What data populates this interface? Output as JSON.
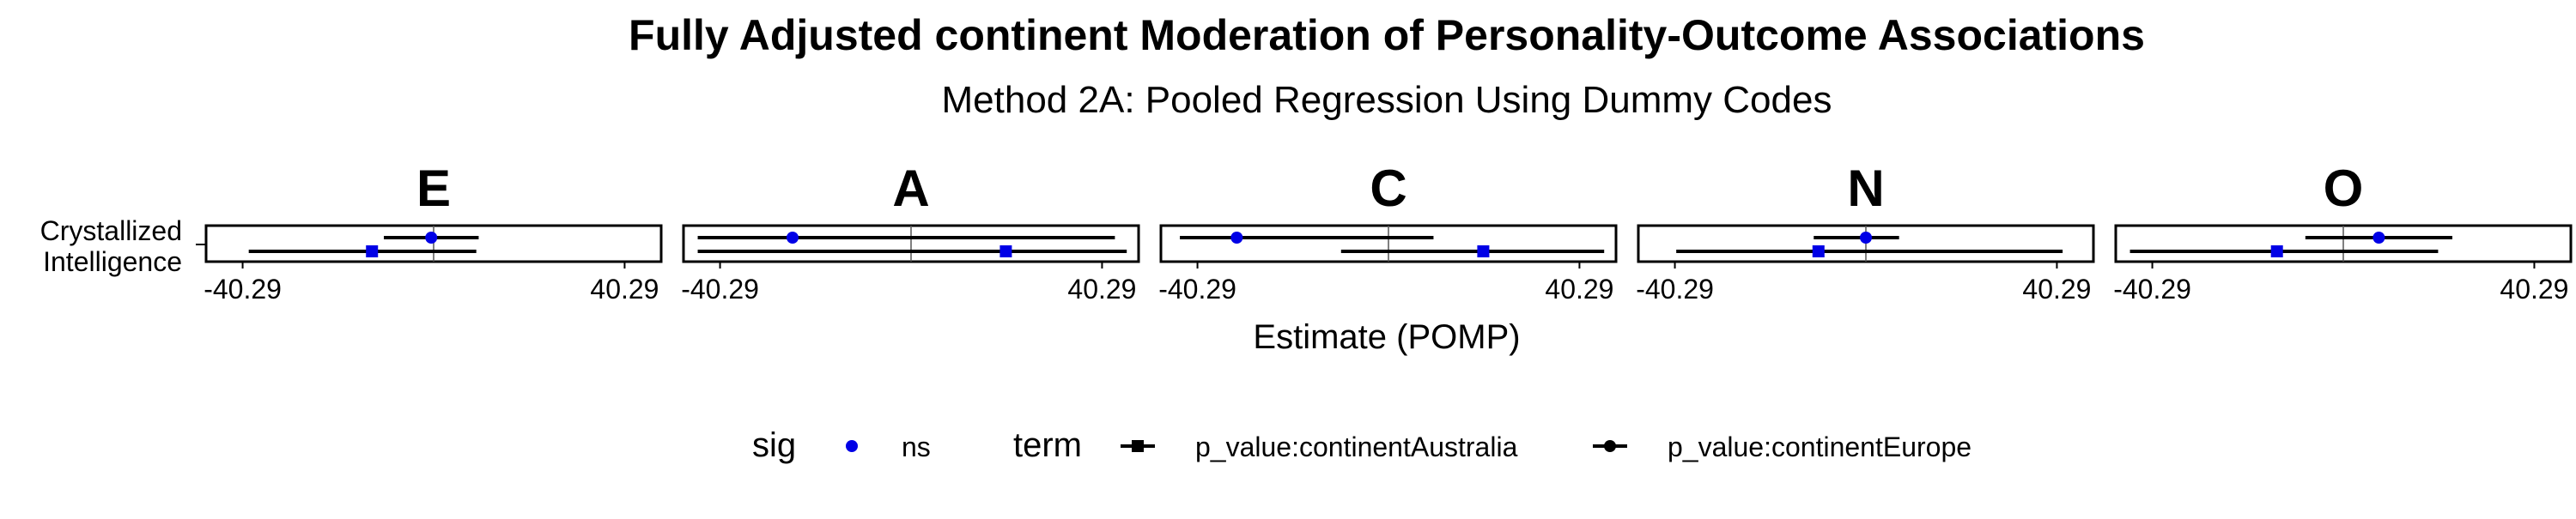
{
  "chart_data": {
    "type": "dot-interval",
    "title": "Fully Adjusted continent Moderation of Personality-Outcome Associations",
    "subtitle": "Method 2A: Pooled Regression Using Dummy Codes",
    "xlabel": "Estimate (POMP)",
    "ylabel": "",
    "facets": [
      "E",
      "A",
      "C",
      "N",
      "O"
    ],
    "y_categories": [
      "Crystallized\nIntelligence"
    ],
    "x_tick_labels": [
      "-40.29",
      "40.29"
    ],
    "xlim": [
      -48,
      48
    ],
    "reference_line": 0,
    "grid": false,
    "legend_position": "bottom",
    "point_color": "#0000e6",
    "series": [
      {
        "name": "p_value:continentEurope",
        "shape": "circle",
        "facets": {
          "E": {
            "estimate": -0.5,
            "low": -10.5,
            "high": 9.5
          },
          "A": {
            "estimate": -25.0,
            "low": -45.0,
            "high": 43.0
          },
          "C": {
            "estimate": -32.0,
            "low": -44.0,
            "high": 9.5
          },
          "N": {
            "estimate": 0.0,
            "low": -11.0,
            "high": 7.0
          },
          "O": {
            "estimate": 7.5,
            "low": -8.0,
            "high": 23.0
          }
        }
      },
      {
        "name": "p_value:continentAustralia",
        "shape": "square",
        "facets": {
          "E": {
            "estimate": -13.0,
            "low": -39.0,
            "high": 9.0
          },
          "A": {
            "estimate": 20.0,
            "low": -45.0,
            "high": 45.5
          },
          "C": {
            "estimate": 20.0,
            "low": -10.0,
            "high": 45.5
          },
          "N": {
            "estimate": -10.0,
            "low": -40.0,
            "high": 41.5
          },
          "O": {
            "estimate": -14.0,
            "low": -45.0,
            "high": 20.0
          }
        }
      }
    ],
    "legend": {
      "sig_title": "sig",
      "sig_items": [
        "ns"
      ],
      "term_title": "term",
      "term_items": [
        "p_value:continentAustralia",
        "p_value:continentEurope"
      ]
    }
  }
}
